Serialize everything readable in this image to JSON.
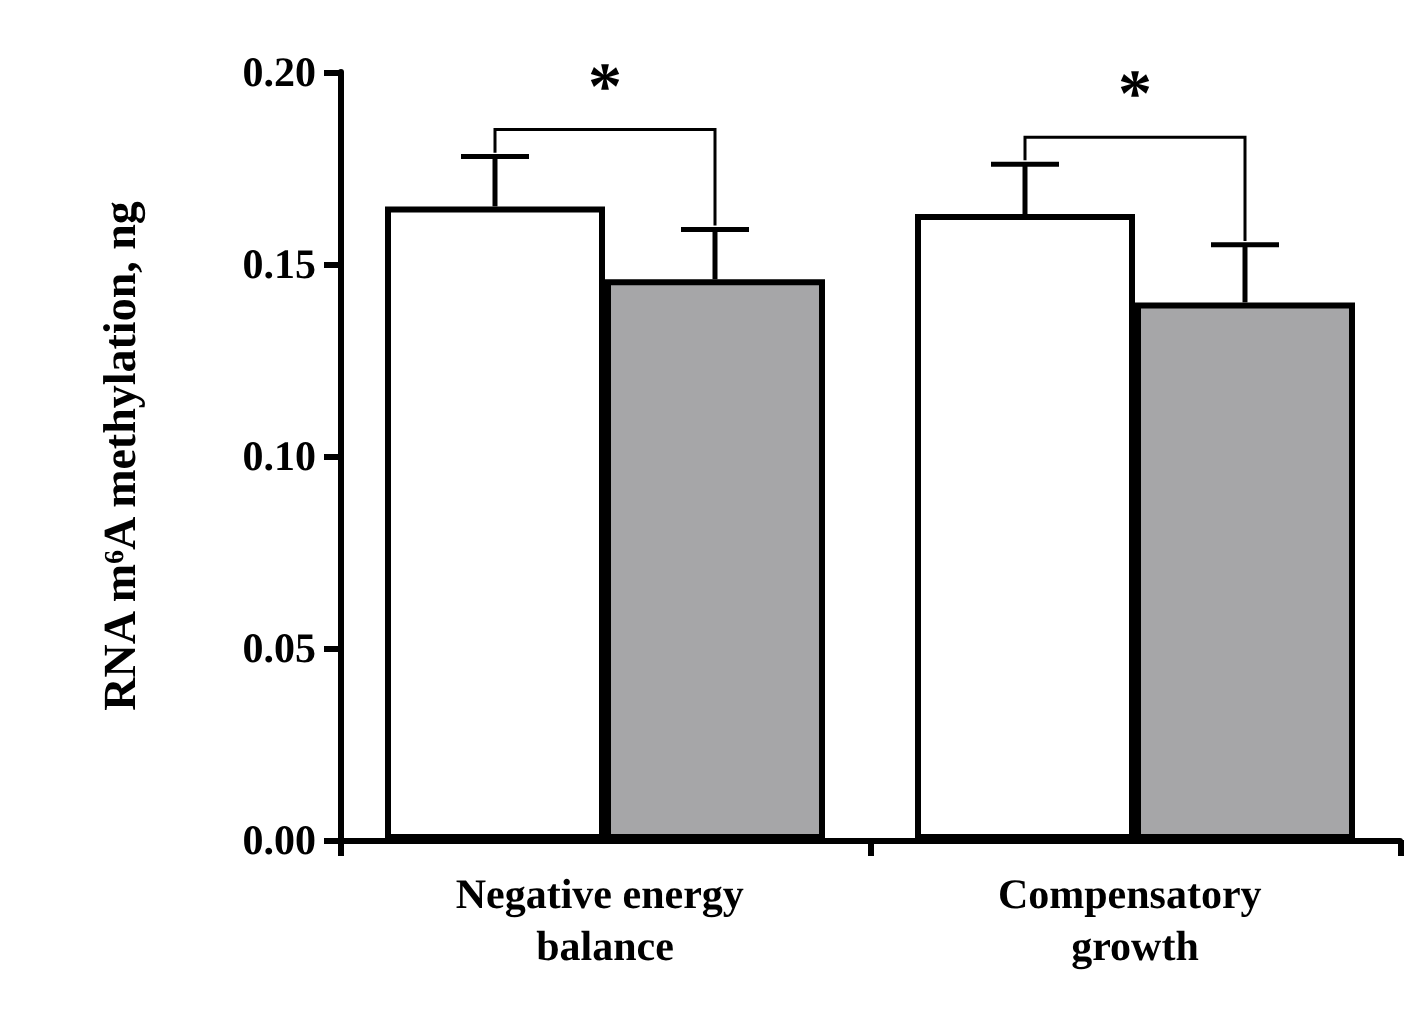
{
  "chart_data": {
    "type": "bar",
    "ylabel": "RNA m⁶A methylation, ng",
    "categories": [
      "Negative energy balance",
      "Compensatory growth"
    ],
    "series": [
      {
        "color": "#ffffff",
        "values": [
          0.165,
          0.163
        ],
        "errors": [
          [
            0.165,
            0.178
          ],
          [
            0.163,
            0.176
          ]
        ]
      },
      {
        "color": "#a6a6a8",
        "values": [
          0.146,
          0.14
        ],
        "errors": [
          [
            0.146,
            0.159
          ],
          [
            0.14,
            0.155
          ]
        ]
      }
    ],
    "ylim": [
      0,
      0.2
    ],
    "yticks": [
      {
        "value": 0,
        "label": "0.00"
      },
      {
        "value": 0.05,
        "label": "0.05"
      },
      {
        "value": 0.1,
        "label": "0.10"
      },
      {
        "value": 0.15,
        "label": "0.15"
      },
      {
        "value": 0.2,
        "label": "0.20"
      }
    ],
    "grid": false,
    "annotations": [
      "*",
      "*"
    ]
  }
}
